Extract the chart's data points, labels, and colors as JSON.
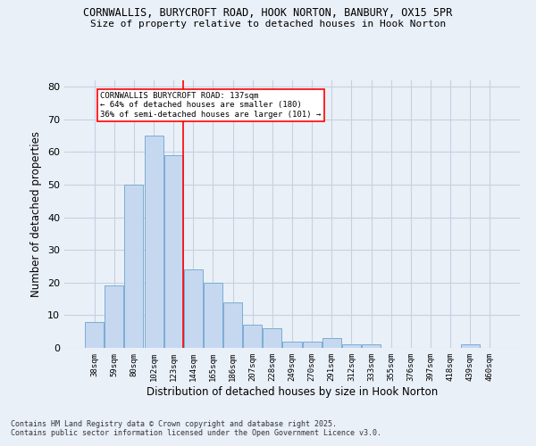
{
  "title_line1": "CORNWALLIS, BURYCROFT ROAD, HOOK NORTON, BANBURY, OX15 5PR",
  "title_line2": "Size of property relative to detached houses in Hook Norton",
  "xlabel": "Distribution of detached houses by size in Hook Norton",
  "ylabel": "Number of detached properties",
  "categories": [
    "38sqm",
    "59sqm",
    "80sqm",
    "102sqm",
    "123sqm",
    "144sqm",
    "165sqm",
    "186sqm",
    "207sqm",
    "228sqm",
    "249sqm",
    "270sqm",
    "291sqm",
    "312sqm",
    "333sqm",
    "355sqm",
    "376sqm",
    "397sqm",
    "418sqm",
    "439sqm",
    "460sqm"
  ],
  "values": [
    8,
    19,
    50,
    65,
    59,
    24,
    20,
    14,
    7,
    6,
    2,
    2,
    3,
    1,
    1,
    0,
    0,
    0,
    0,
    1,
    0
  ],
  "bar_color": "#c5d8f0",
  "bar_edge_color": "#7aadd4",
  "grid_color": "#c8d0e0",
  "background_color": "#eaf0f8",
  "red_line_x": 4.5,
  "annotation_text": "CORNWALLIS BURYCROFT ROAD: 137sqm\n← 64% of detached houses are smaller (180)\n36% of semi-detached houses are larger (101) →",
  "annotation_box_color": "white",
  "annotation_box_edge": "red",
  "footnote": "Contains HM Land Registry data © Crown copyright and database right 2025.\nContains public sector information licensed under the Open Government Licence v3.0.",
  "ylim": [
    0,
    82
  ],
  "yticks": [
    0,
    10,
    20,
    30,
    40,
    50,
    60,
    70,
    80
  ]
}
